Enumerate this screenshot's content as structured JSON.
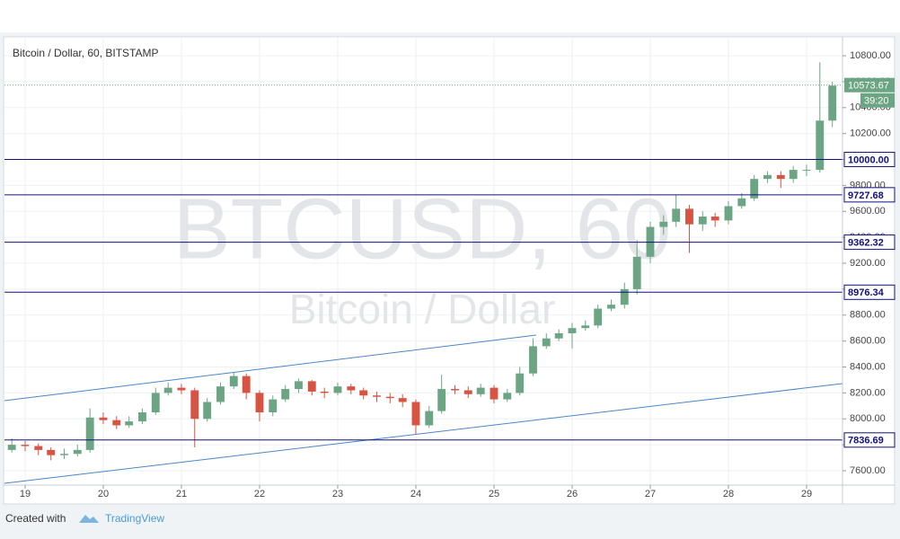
{
  "chart_data": {
    "type": "candlestick",
    "title": "Bitcoin / Dollar, 60, BITSTAMP",
    "watermark": [
      "BTCUSD, 60",
      "Bitcoin / Dollar"
    ],
    "up_color": "#6ba583",
    "down_color": "#d75442",
    "grid": true,
    "x": [
      18.83,
      19.0,
      19.17,
      19.33,
      19.5,
      19.67,
      19.83,
      20.0,
      20.17,
      20.33,
      20.5,
      20.67,
      20.83,
      21.0,
      21.17,
      21.33,
      21.5,
      21.67,
      21.83,
      22.0,
      22.17,
      22.33,
      22.5,
      22.67,
      22.83,
      23.0,
      23.17,
      23.33,
      23.5,
      23.67,
      23.83,
      24.0,
      24.17,
      24.33,
      24.5,
      24.67,
      24.83,
      25.0,
      25.17,
      25.33,
      25.5,
      25.67,
      25.83,
      26.0,
      26.17,
      26.33,
      26.5,
      26.67,
      26.83,
      27.0,
      27.17,
      27.33,
      27.5,
      27.67,
      27.83,
      28.0,
      28.17,
      28.33,
      28.5,
      28.67,
      28.83,
      29.0,
      29.17,
      29.33
    ],
    "open": [
      7760,
      7800,
      7790,
      7760,
      7720,
      7730,
      7760,
      8010,
      7990,
      7950,
      7980,
      8050,
      8200,
      8240,
      8220,
      8000,
      8130,
      8250,
      8330,
      8200,
      8050,
      8150,
      8230,
      8290,
      8210,
      8200,
      8250,
      8220,
      8180,
      8170,
      8160,
      8130,
      7950,
      8060,
      8230,
      8220,
      8190,
      8240,
      8150,
      8200,
      8350,
      8560,
      8620,
      8660,
      8700,
      8720,
      8850,
      8880,
      9000,
      9250,
      9480,
      9520,
      9620,
      9500,
      9560,
      9530,
      9640,
      9700,
      9850,
      9880,
      9850,
      9920,
      9920,
      10300
    ],
    "high": [
      7850,
      7830,
      7810,
      7780,
      7770,
      7800,
      8080,
      8050,
      8020,
      8020,
      8080,
      8240,
      8280,
      8270,
      8240,
      8160,
      8280,
      8360,
      8350,
      8220,
      8180,
      8260,
      8310,
      8300,
      8240,
      8280,
      8270,
      8240,
      8210,
      8200,
      8190,
      8150,
      8100,
      8340,
      8260,
      8250,
      8270,
      8260,
      8230,
      8400,
      8620,
      8660,
      8690,
      8740,
      8760,
      8880,
      8920,
      9050,
      9380,
      9520,
      9570,
      9730,
      9650,
      9600,
      9590,
      9680,
      9740,
      9880,
      9910,
      9910,
      9950,
      9960,
      10750,
      10600
    ],
    "low": [
      7740,
      7750,
      7720,
      7680,
      7690,
      7710,
      7740,
      7960,
      7920,
      7930,
      7960,
      8030,
      8180,
      8190,
      7780,
      7980,
      8110,
      8230,
      8150,
      7980,
      8020,
      8130,
      8200,
      8180,
      8160,
      8180,
      8190,
      8150,
      8130,
      8120,
      8090,
      7880,
      7930,
      8040,
      8190,
      8160,
      8170,
      8120,
      8130,
      8180,
      8330,
      8540,
      8600,
      8540,
      8680,
      8700,
      8830,
      8850,
      8960,
      9200,
      9420,
      9480,
      9280,
      9450,
      9480,
      9500,
      9620,
      9680,
      9820,
      9780,
      9820,
      9870,
      9900,
      10250
    ],
    "close": [
      7800,
      7790,
      7760,
      7720,
      7730,
      7760,
      8010,
      7990,
      7950,
      7980,
      8050,
      8200,
      8240,
      8220,
      8000,
      8130,
      8250,
      8330,
      8200,
      8050,
      8150,
      8230,
      8290,
      8210,
      8200,
      8250,
      8220,
      8180,
      8170,
      8160,
      8130,
      7950,
      8060,
      8230,
      8220,
      8190,
      8240,
      8150,
      8200,
      8350,
      8560,
      8620,
      8660,
      8700,
      8720,
      8850,
      8880,
      9000,
      9250,
      9480,
      9520,
      9620,
      9500,
      9560,
      9530,
      9640,
      9700,
      9850,
      9880,
      9850,
      9920,
      9920,
      10300,
      10570
    ],
    "xlim": [
      18.736,
      29.46
    ],
    "xticks": [
      19,
      20,
      21,
      22,
      23,
      24,
      25,
      26,
      27,
      28,
      29
    ],
    "ylim": [
      7489,
      10939
    ],
    "yticks": [
      {
        "value": 7600,
        "label": "7600.00"
      },
      {
        "value": 7800,
        "label": "7800.00"
      },
      {
        "value": 8000,
        "label": "8000.00"
      },
      {
        "value": 8200,
        "label": "8200.00"
      },
      {
        "value": 8400,
        "label": "8400.00"
      },
      {
        "value": 8600,
        "label": "8600.00"
      },
      {
        "value": 8800,
        "label": "8800.00"
      },
      {
        "value": 9000,
        "label": "9000.00"
      },
      {
        "value": 9200,
        "label": "9200.00"
      },
      {
        "value": 9400,
        "label": "9400.00"
      },
      {
        "value": 9600,
        "label": "9600.00"
      },
      {
        "value": 9800,
        "label": "9800.00"
      },
      {
        "value": 10000,
        "label": "10000.00"
      },
      {
        "value": 10200,
        "label": "10200.00"
      },
      {
        "value": 10400,
        "label": "10400.00"
      },
      {
        "value": 10600,
        "label": "10600.00"
      },
      {
        "value": 10800,
        "label": "10800.00"
      }
    ],
    "levels": [
      {
        "value": 10000,
        "label": "10000.00"
      },
      9727.68,
      9362.32,
      8976.34,
      7836.69
    ],
    "level_color": "#10107a",
    "last_price": 10573.67,
    "countdown": "39:20",
    "trend_lines": [
      {
        "x": [
          18.736,
          25.54
        ],
        "y": [
          8140,
          8646
        ]
      },
      {
        "x": [
          18.736,
          29.46
        ],
        "y": [
          7503,
          8272
        ]
      }
    ],
    "trend_color": "#4a86c8",
    "footer": {
      "prefix": "Created with",
      "brand": "TradingView"
    }
  }
}
